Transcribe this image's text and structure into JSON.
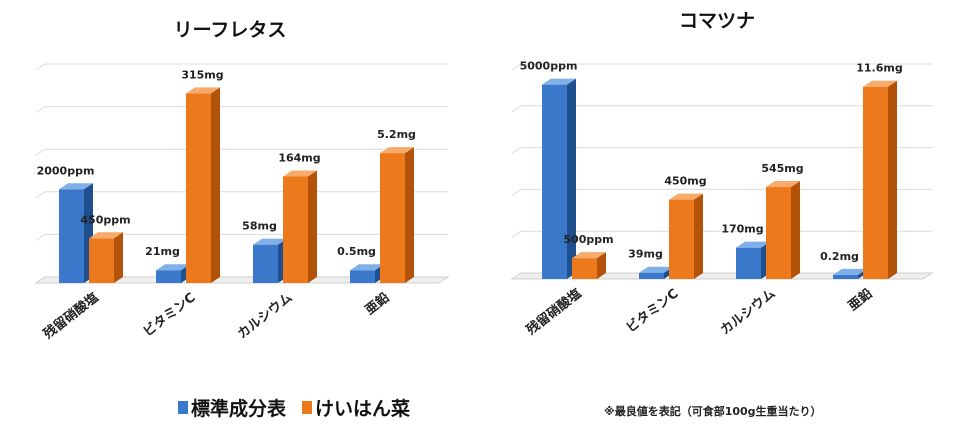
{
  "chart_data": [
    {
      "type": "bar",
      "title": "リーフレタス",
      "categories": [
        "残留硝酸塩",
        "ビタミンC",
        "カルシウム",
        "亜鉛"
      ],
      "series": [
        {
          "name": "標準成分表",
          "values": [
            0.44,
            0.06,
            0.18,
            0.06
          ],
          "labels": [
            "2000ppm",
            "21mg",
            "58mg",
            "0.5mg"
          ]
        },
        {
          "name": "けいはん菜",
          "values": [
            0.21,
            0.89,
            0.5,
            0.61
          ],
          "labels": [
            "450ppm",
            "315mg",
            "164mg",
            "5.2mg"
          ]
        }
      ],
      "ylim": [
        0,
        1
      ],
      "grid": true,
      "legend": "bottom"
    },
    {
      "type": "bar",
      "title": "コマツナ",
      "categories": [
        "残留硝酸塩",
        "ビタミンC",
        "カルシウム",
        "亜鉛"
      ],
      "series": [
        {
          "name": "標準成分表",
          "values": [
            0.93,
            0.03,
            0.15,
            0.02
          ],
          "labels": [
            "5000ppm",
            "39mg",
            "170mg",
            "0.2mg"
          ]
        },
        {
          "name": "けいはん菜",
          "values": [
            0.1,
            0.38,
            0.44,
            0.92
          ],
          "labels": [
            "500ppm",
            "450mg",
            "545mg",
            "11.6mg"
          ]
        }
      ],
      "ylim": [
        0,
        1
      ],
      "grid": true,
      "legend": "bottom"
    }
  ],
  "legend": {
    "items": [
      {
        "label": "標準成分表",
        "color": "#3a78c9"
      },
      {
        "label": "けいはん菜",
        "color": "#ec7a1c"
      }
    ]
  },
  "footnote": "※最良値を表記（可食部100g生重当たり）",
  "colors": {
    "blue_front": "#3a78c9",
    "blue_side": "#1f4f8f",
    "blue_top": "#7fb0ea",
    "orange_front": "#ec7a1c",
    "orange_side": "#b3530a",
    "orange_top": "#f7aa6a"
  }
}
